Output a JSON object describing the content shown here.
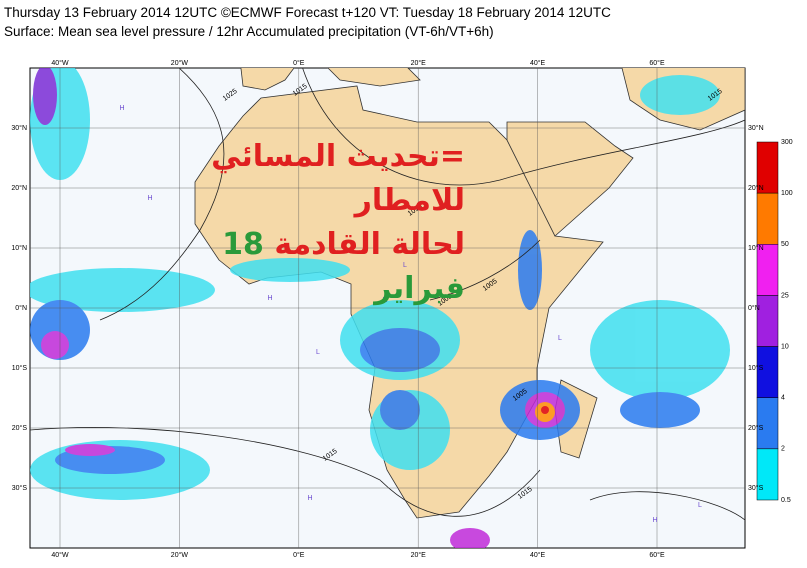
{
  "header": {
    "line1": "Thursday 13 February 2014 12UTC ©ECMWF Forecast t+120 VT: Tuesday 18 February 2014 12UTC",
    "line2": "Surface: Mean sea level pressure / 12hr Accumulated precipitation (VT-6h/VT+6h)"
  },
  "overlay": {
    "line1": "=تحديث المسائي للامطار",
    "line2_red": "لحالة القادمة",
    "line2_green": "18 فبراير"
  },
  "map": {
    "lon_labels": [
      "40°W",
      "20°W",
      "0°E",
      "20°E",
      "40°E",
      "60°E"
    ],
    "lat_labels": [
      "30°N",
      "20°N",
      "10°N",
      "0°N",
      "10°S",
      "20°S",
      "30°S"
    ],
    "isobar_labels": [
      "1025",
      "1015",
      "1015",
      "1005",
      "1005",
      "1005",
      "1015",
      "1015",
      "1015"
    ],
    "pressure_centers": [
      "H",
      "H",
      "H",
      "L",
      "L",
      "L",
      "H",
      "H",
      "L",
      "H"
    ]
  },
  "colorbar": {
    "levels": [
      "300",
      "100",
      "50",
      "25",
      "10",
      "4",
      "2",
      "0.5"
    ]
  }
}
